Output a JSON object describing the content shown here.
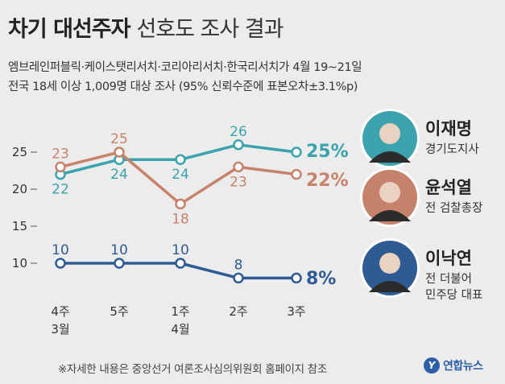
{
  "header": {
    "title_bold": "차기 대선주자",
    "title_light": "선호도 조사 결과",
    "source_line": "엠브레인퍼블릭·케이스탯리서치·코리아리서치·한국리서치가 4월 19~21일",
    "method_line": "전국 18세 이상 1,009명 대상 조사 (95% 신뢰수준에 표본오차±3.1%p)"
  },
  "chart_data": {
    "type": "line",
    "categories": [
      [
        "4주",
        "3월"
      ],
      [
        "5주",
        ""
      ],
      [
        "1주",
        "4월"
      ],
      [
        "2주",
        ""
      ],
      [
        "3주",
        ""
      ]
    ],
    "yticks": [
      10,
      15,
      20,
      25
    ],
    "ylim": [
      7,
      28
    ],
    "grid": false,
    "series": [
      {
        "name": "이재명",
        "subtitle": "경기도지사",
        "color": "#3aa3ad",
        "values": [
          22,
          24,
          24,
          26,
          25
        ],
        "labels": [
          "22",
          "24",
          "24",
          "26",
          ""
        ],
        "end_label": "25%",
        "avatar_bg": "#3aa3ad"
      },
      {
        "name": "윤석열",
        "subtitle": "전 검찰총장",
        "color": "#c7826b",
        "values": [
          23,
          25,
          18,
          23,
          22
        ],
        "labels": [
          "23",
          "25",
          "18",
          "23",
          ""
        ],
        "end_label": "22%",
        "avatar_bg": "#c7826b"
      },
      {
        "name": "이낙연",
        "subtitle": "전 더불어\n민주당 대표",
        "color": "#2f5b95",
        "values": [
          10,
          10,
          10,
          8,
          8
        ],
        "labels": [
          "10",
          "10",
          "10",
          "8",
          ""
        ],
        "end_label": "8%",
        "avatar_bg": "#2f5b95"
      }
    ]
  },
  "footer": {
    "note": "※자세한 내용은 중앙선거 여론조사심의위원회 홈페이지 참조",
    "logo_mark": "Y",
    "logo_text": "연합뉴스"
  }
}
